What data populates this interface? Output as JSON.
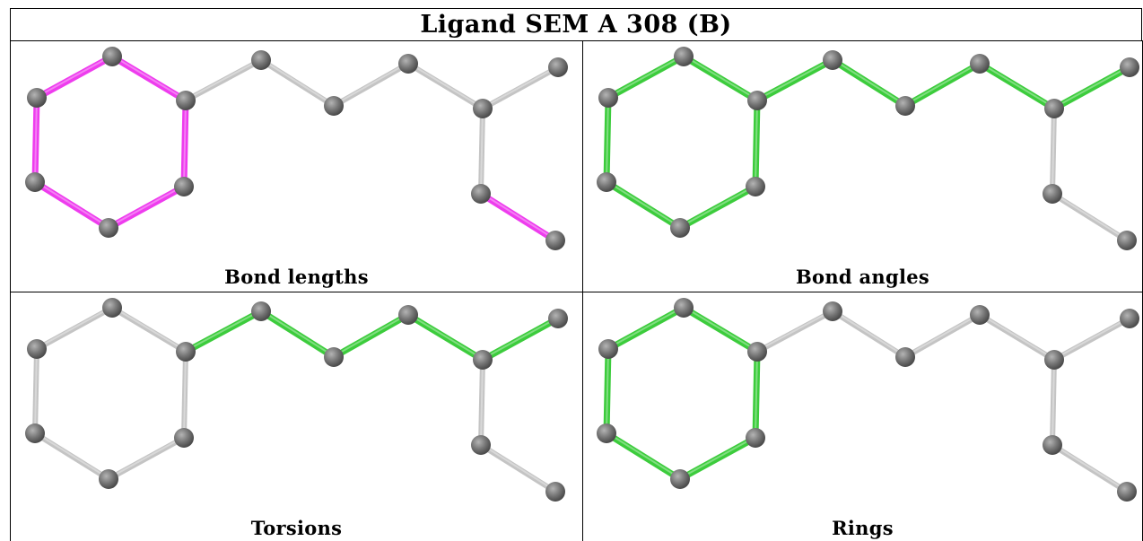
{
  "title": "Ligand SEM A 308 (B)",
  "colors": {
    "highlight_green": "#3ccc3c",
    "highlight_magenta": "#ee3cee",
    "default_bond": "#c4c4c4",
    "atom": "#777777"
  },
  "panels": [
    {
      "caption": "Bond lengths",
      "highlight_color": "#ee3cee"
    },
    {
      "caption": "Bond angles",
      "highlight_color": "#3ccc3c"
    },
    {
      "caption": "Torsions",
      "highlight_color": "#3ccc3c"
    },
    {
      "caption": "Rings",
      "highlight_color": "#3ccc3c"
    }
  ]
}
